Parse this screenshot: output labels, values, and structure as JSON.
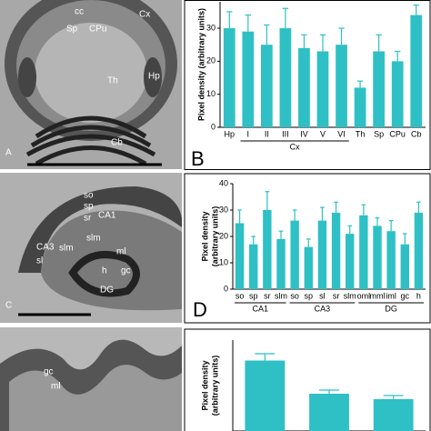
{
  "panels": [
    {
      "letter": "A",
      "labels": [
        "cc",
        "Cx",
        "Sp",
        "CPu",
        "Th",
        "Hp",
        "Cb"
      ]
    },
    {
      "letter": "C",
      "labels": [
        "so",
        "sp",
        "sr",
        "CA1",
        "slm",
        "CA3",
        "sl",
        "slm",
        "ml",
        "h",
        "gc",
        "DG"
      ]
    },
    {
      "labels": [
        "gc",
        "ml"
      ]
    }
  ],
  "chart_data": [
    {
      "type": "bar",
      "panel": "B",
      "ylabel": "Pixel density (arbitrary units)",
      "color": "#2ec0c4",
      "categories": [
        "Hp",
        "I",
        "II",
        "III",
        "IV",
        "V",
        "VI",
        "Th",
        "Sp",
        "CPu",
        "Cb"
      ],
      "values": [
        30,
        29,
        25,
        30,
        24,
        23,
        25,
        12,
        23,
        20,
        34
      ],
      "errors": [
        5,
        5,
        6,
        6,
        4,
        5,
        5,
        2,
        5,
        3,
        3
      ],
      "groups": [
        {
          "name": "Cx",
          "start": 1,
          "end": 6
        }
      ],
      "ylim": [
        0,
        38
      ],
      "yticks": [
        0,
        10,
        20,
        30
      ]
    },
    {
      "type": "bar",
      "panel": "D",
      "ylabel": [
        "Pixel density",
        "(arbitrary units)"
      ],
      "color": "#2ec0c4",
      "categories": [
        "so",
        "sp",
        "sr",
        "slm",
        "so",
        "sp",
        "sl",
        "sr",
        "slm",
        "oml",
        "mml",
        "iml",
        "gc",
        "h"
      ],
      "values": [
        25,
        17,
        30,
        19,
        26,
        16,
        26,
        29,
        21,
        28,
        24,
        22,
        17,
        29
      ],
      "errors": [
        5,
        3,
        7,
        3,
        4,
        3,
        5,
        4,
        3,
        4,
        3,
        4,
        4,
        4
      ],
      "groups": [
        {
          "name": "CA1",
          "start": 0,
          "end": 3
        },
        {
          "name": "CA3",
          "start": 4,
          "end": 8
        },
        {
          "name": "DG",
          "start": 9,
          "end": 13
        }
      ],
      "ylim": [
        0,
        40
      ],
      "yticks": [
        0,
        10,
        20,
        30,
        40
      ]
    },
    {
      "type": "bar",
      "ylabel": [
        "Pixel density",
        "(arbitrary units)"
      ],
      "color": "#2ec0c4",
      "categories": [
        null,
        null,
        null
      ],
      "values": [
        155,
        82,
        70
      ],
      "errors": [
        15,
        8,
        8
      ],
      "ylim": [
        0,
        200
      ],
      "yticks": []
    }
  ]
}
